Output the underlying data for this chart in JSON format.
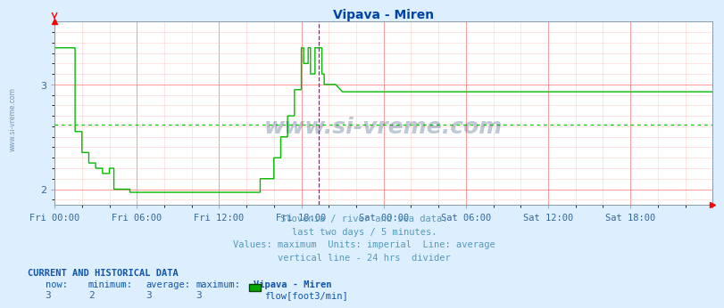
{
  "title": "Vipava - Miren",
  "bg_color": "#ddeeff",
  "plot_bg_color": "#ffffff",
  "line_color": "#00bb00",
  "avg_line_color": "#00cc00",
  "grid_color_major": "#ff8888",
  "grid_color_minor": "#ffcccc",
  "vline_color": "#bb00bb",
  "xlabel_color": "#336699",
  "ylabel_color": "#336699",
  "title_color": "#0044aa",
  "text_color": "#5599bb",
  "yticks": [
    2,
    3
  ],
  "ylim": [
    1.85,
    3.6
  ],
  "xlim_hours": [
    0,
    48
  ],
  "tick_labels_x": [
    "Fri 00:00",
    "Fri 06:00",
    "Fri 12:00",
    "Fri 18:00",
    "Sat 00:00",
    "Sat 06:00",
    "Sat 12:00",
    "Sat 18:00"
  ],
  "tick_positions_x": [
    0,
    6,
    12,
    18,
    24,
    30,
    36,
    42
  ],
  "avg_value": 2.62,
  "vline_x": 19.3,
  "subtitle_lines": [
    "Slovenia / river and sea data.",
    "last two days / 5 minutes.",
    "Values: maximum  Units: imperial  Line: average",
    "vertical line - 24 hrs  divider"
  ],
  "footer_bold": "CURRENT AND HISTORICAL DATA",
  "footer_headers": [
    "now:",
    "minimum:",
    "average:",
    "maximum:",
    "Vipava - Miren"
  ],
  "footer_values": [
    "3",
    "2",
    "3",
    "3"
  ],
  "footer_legend": "flow[foot3/min]",
  "watermark": "www.si-vreme.com",
  "watermark_color": "#1a3a6a",
  "data_x": [
    0.0,
    0.08,
    0.08,
    1.0,
    1.0,
    1.5,
    1.5,
    2.0,
    2.0,
    2.5,
    2.5,
    3.0,
    3.0,
    3.5,
    3.5,
    4.0,
    4.0,
    4.33,
    4.33,
    5.5,
    5.5,
    5.58,
    5.58,
    6.0,
    6.0,
    7.0,
    7.0,
    7.5,
    7.5,
    8.0,
    8.0,
    9.0,
    9.0,
    10.0,
    10.0,
    11.0,
    11.0,
    12.0,
    12.0,
    13.0,
    13.0,
    13.5,
    13.5,
    14.0,
    14.0,
    14.5,
    14.5,
    15.0,
    15.0,
    15.5,
    15.5,
    16.0,
    16.0,
    16.5,
    16.5,
    17.0,
    17.0,
    17.5,
    17.5,
    18.0,
    18.0,
    18.17,
    18.17,
    18.5,
    18.5,
    18.67,
    18.67,
    19.0,
    19.0,
    19.3,
    19.3,
    19.5,
    19.5,
    19.67,
    19.67,
    20.0,
    20.0,
    20.5,
    20.5,
    21.0,
    21.0,
    22.0,
    22.0,
    23.0,
    23.0,
    24.0,
    24.0,
    25.0,
    25.0,
    26.0,
    26.0,
    27.0,
    27.0,
    28.0,
    28.0,
    30.0,
    30.0,
    36.0,
    36.0,
    48.0
  ],
  "data_y": [
    3.35,
    3.35,
    3.35,
    3.35,
    3.35,
    3.35,
    2.55,
    2.55,
    2.35,
    2.35,
    2.25,
    2.25,
    2.2,
    2.2,
    2.15,
    2.15,
    2.2,
    2.2,
    2.0,
    2.0,
    1.97,
    1.97,
    1.97,
    1.97,
    1.97,
    1.97,
    1.97,
    1.97,
    1.97,
    1.97,
    1.97,
    1.97,
    1.97,
    1.97,
    1.97,
    1.97,
    1.97,
    1.97,
    1.97,
    1.97,
    1.97,
    1.97,
    1.97,
    1.97,
    1.97,
    1.97,
    1.97,
    1.97,
    2.1,
    2.1,
    2.1,
    2.1,
    2.3,
    2.3,
    2.5,
    2.5,
    2.7,
    2.7,
    2.95,
    2.95,
    3.35,
    3.35,
    3.2,
    3.2,
    3.35,
    3.35,
    3.1,
    3.1,
    3.35,
    3.35,
    3.35,
    3.35,
    3.1,
    3.1,
    3.0,
    3.0,
    3.0,
    3.0,
    3.0,
    2.93,
    2.93,
    2.93,
    2.93,
    2.93,
    2.93,
    2.93,
    2.93,
    2.93,
    2.93,
    2.93,
    2.93,
    2.93,
    2.93,
    2.93,
    2.93,
    2.93,
    2.93,
    2.93,
    2.93,
    2.93
  ]
}
